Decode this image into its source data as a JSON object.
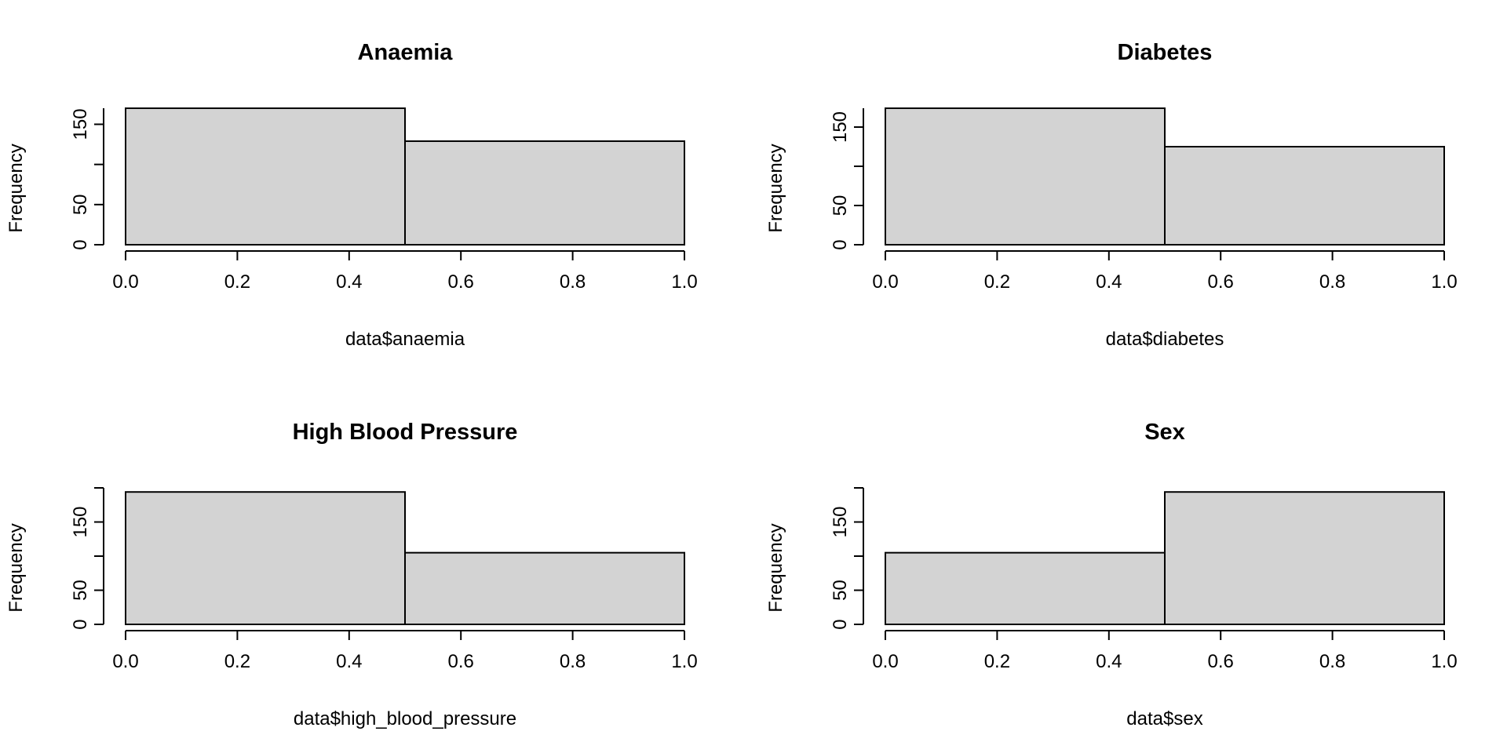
{
  "chart_data": [
    {
      "type": "bar",
      "title": "Anaemia",
      "xlabel": "data$anaemia",
      "ylabel": "Frequency",
      "bins": [
        [
          0.0,
          0.5
        ],
        [
          0.5,
          1.0
        ]
      ],
      "values": [
        170,
        129
      ],
      "xlim": [
        0.0,
        1.0
      ],
      "ylim": [
        0,
        170
      ],
      "xticks": [
        "0.0",
        "0.2",
        "0.4",
        "0.6",
        "0.8",
        "1.0"
      ],
      "yticks": [
        "0",
        "50",
        "150"
      ],
      "bar_color": "#d3d3d3",
      "grid": false
    },
    {
      "type": "bar",
      "title": "Diabetes",
      "xlabel": "data$diabetes",
      "ylabel": "Frequency",
      "bins": [
        [
          0.0,
          0.5
        ],
        [
          0.5,
          1.0
        ]
      ],
      "values": [
        174,
        125
      ],
      "xlim": [
        0.0,
        1.0
      ],
      "ylim": [
        0,
        174
      ],
      "xticks": [
        "0.0",
        "0.2",
        "0.4",
        "0.6",
        "0.8",
        "1.0"
      ],
      "yticks": [
        "0",
        "50",
        "150"
      ],
      "bar_color": "#d3d3d3",
      "grid": false
    },
    {
      "type": "bar",
      "title": "High Blood Pressure",
      "xlabel": "data$high_blood_pressure",
      "ylabel": "Frequency",
      "bins": [
        [
          0.0,
          0.5
        ],
        [
          0.5,
          1.0
        ]
      ],
      "values": [
        194,
        105
      ],
      "xlim": [
        0.0,
        1.0
      ],
      "ylim": [
        0,
        200
      ],
      "xticks": [
        "0.0",
        "0.2",
        "0.4",
        "0.6",
        "0.8",
        "1.0"
      ],
      "yticks": [
        "0",
        "50",
        "150"
      ],
      "bar_color": "#d3d3d3",
      "grid": false
    },
    {
      "type": "bar",
      "title": "Sex",
      "xlabel": "data$sex",
      "ylabel": "Frequency",
      "bins": [
        [
          0.0,
          0.5
        ],
        [
          0.5,
          1.0
        ]
      ],
      "values": [
        105,
        194
      ],
      "xlim": [
        0.0,
        1.0
      ],
      "ylim": [
        0,
        200
      ],
      "xticks": [
        "0.0",
        "0.2",
        "0.4",
        "0.6",
        "0.8",
        "1.0"
      ],
      "yticks": [
        "0",
        "50",
        "150"
      ],
      "bar_color": "#d3d3d3",
      "grid": false
    }
  ]
}
